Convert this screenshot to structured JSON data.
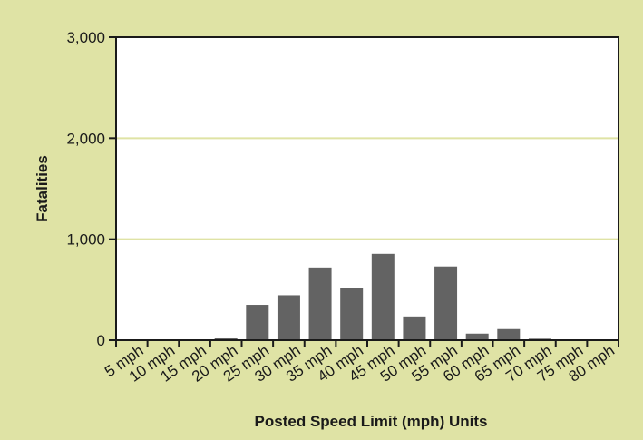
{
  "chart_data": {
    "type": "bar",
    "title": "",
    "xlabel": "Posted Speed Limit (mph) Units",
    "ylabel": "Fatalities",
    "categories": [
      "5 mph",
      "10 mph",
      "15 mph",
      "20 mph",
      "25 mph",
      "30 mph",
      "35 mph",
      "40 mph",
      "45 mph",
      "50 mph",
      "55 mph",
      "60 mph",
      "65 mph",
      "70 mph",
      "75 mph",
      "80 mph"
    ],
    "values": [
      0,
      2,
      8,
      18,
      350,
      445,
      720,
      515,
      855,
      235,
      730,
      65,
      110,
      15,
      3,
      1
    ],
    "ylim": [
      0,
      3000
    ],
    "yticks": [
      0,
      1000,
      2000,
      3000
    ],
    "ytick_labels": [
      "0",
      "1,000",
      "2,000",
      "3,000"
    ],
    "grid": true,
    "legend": "none",
    "colors": {
      "background": "#dfe3a5",
      "plot_area": "#ffffff",
      "bar": "#636363",
      "gridline": "#dfe3a5",
      "axis": "#1a1a1a"
    }
  }
}
